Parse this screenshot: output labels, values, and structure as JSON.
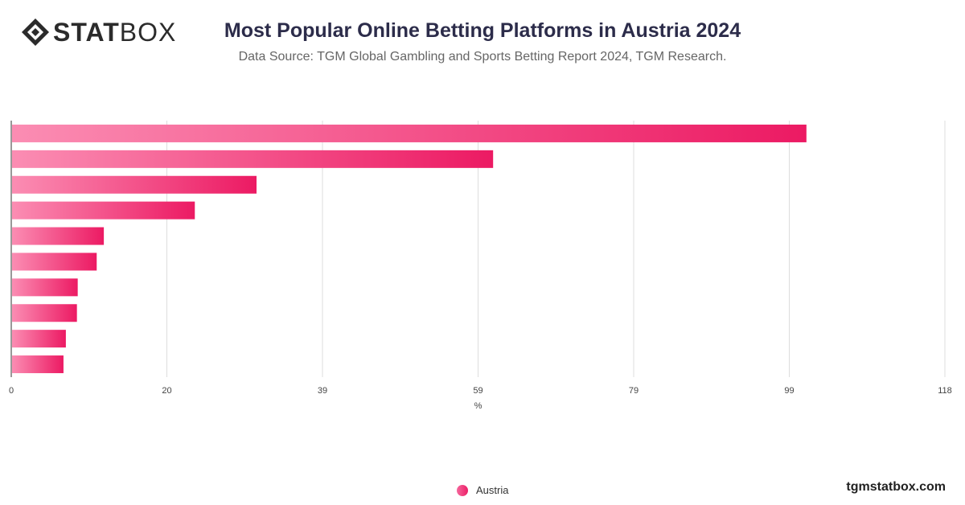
{
  "header": {
    "logo_text_bold": "STAT",
    "logo_text_light": "BOX",
    "title": "Most Popular Online Betting Platforms in Austria 2024",
    "subtitle": "Data Source: TGM Global Gambling and Sports Betting Report 2024, TGM Research."
  },
  "footer": {
    "site": "tgmstatbox.com"
  },
  "colors": {
    "bar_start": "#fb8db3",
    "bar_end": "#ec1a63",
    "grid": "#dddddd",
    "axis": "#333333"
  },
  "chart_data": {
    "type": "bar",
    "orientation": "horizontal",
    "categories": [
      "",
      "",
      "",
      "",
      "",
      "",
      "",
      "",
      "",
      ""
    ],
    "series": [
      {
        "name": "Austria",
        "values": [
          100.5,
          60.9,
          31.0,
          23.2,
          11.7,
          10.8,
          8.4,
          8.3,
          6.9,
          6.6
        ]
      }
    ],
    "xlabel": "%",
    "ylabel": "",
    "xlim": [
      0,
      118
    ],
    "xticks": [
      "0",
      "20",
      "39",
      "59",
      "79",
      "99",
      "118"
    ],
    "grid": true,
    "legend": "bottom"
  }
}
